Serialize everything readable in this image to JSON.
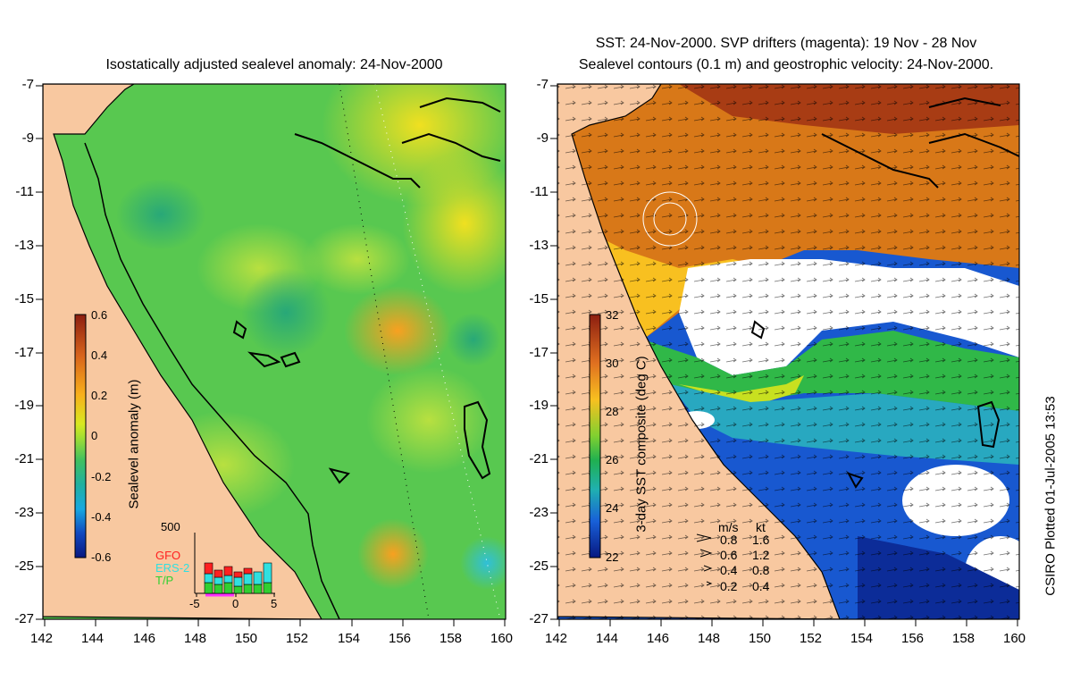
{
  "left_panel": {
    "title": "Isostatically adjusted sealevel anomaly: 24-Nov-2000",
    "colorbar": {
      "label": "Sealevel anomaly (m)",
      "ticks": [
        "0.6",
        "0.4",
        "0.2",
        "0",
        "-0.2",
        "-0.4",
        "-0.6"
      ]
    },
    "inset": {
      "ymax_label": "500",
      "legend": [
        {
          "name": "GFO",
          "color": "#ff2020"
        },
        {
          "name": "ERS-2",
          "color": "#30e0e0"
        },
        {
          "name": "T/P",
          "color": "#30d030"
        }
      ],
      "xticks": [
        "-5",
        "0",
        "5"
      ]
    }
  },
  "right_panel": {
    "title_line1": "SST: 24-Nov-2000. SVP drifters (magenta): 19 Nov - 28 Nov",
    "title_line2": "Sealevel contours (0.1 m) and geostrophic velocity: 24-Nov-2000.",
    "colorbar": {
      "label": "3-day SST composite (deg C)",
      "ticks": [
        "32",
        "30",
        "28",
        "26",
        "24",
        "22"
      ]
    },
    "velocity_legend": {
      "header_ms": "m/s",
      "header_kt": "kt",
      "rows": [
        {
          "ms": "0.8",
          "kt": "1.6"
        },
        {
          "ms": "0.6",
          "kt": "1.2"
        },
        {
          "ms": "0.4",
          "kt": "0.8"
        },
        {
          "ms": "0.2",
          "kt": "0.4"
        }
      ]
    }
  },
  "axes": {
    "y_ticks": [
      "-7",
      "-9",
      "-11",
      "-13",
      "-15",
      "-17",
      "-19",
      "-21",
      "-23",
      "-25",
      "-27"
    ],
    "x_ticks": [
      "142",
      "144",
      "146",
      "148",
      "150",
      "152",
      "154",
      "156",
      "158",
      "160"
    ]
  },
  "credit": "CSIRO Plotted 01-Jul-2005 13:53",
  "colors": {
    "land": "#f8c8a0",
    "sealevel_base": "#58c850",
    "sst_warm": "#d87818",
    "sst_cool": "#1858d0"
  }
}
